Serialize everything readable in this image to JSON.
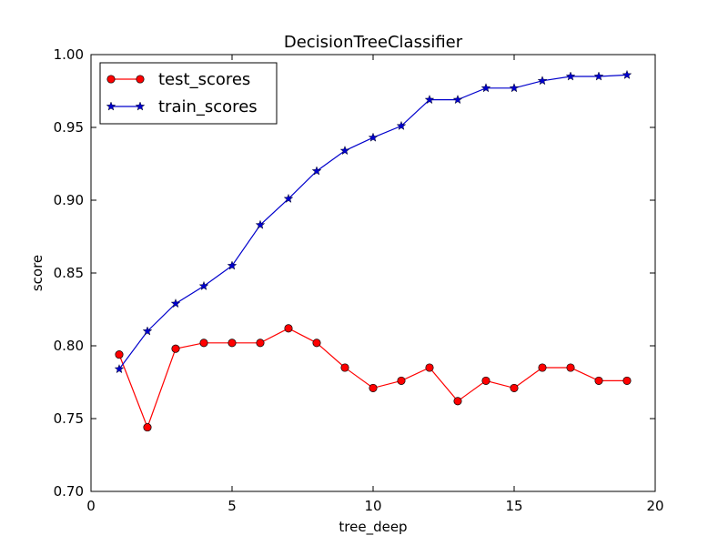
{
  "chart_data": {
    "type": "line",
    "title": "DecisionTreeClassifier",
    "xlabel": "tree_deep",
    "ylabel": "score",
    "xlim": [
      0,
      20
    ],
    "ylim": [
      0.7,
      1.0
    ],
    "xticks": [
      "0",
      "5",
      "10",
      "15",
      "20"
    ],
    "yticks": [
      "0.70",
      "0.75",
      "0.80",
      "0.85",
      "0.90",
      "0.95",
      "1.00"
    ],
    "grid": false,
    "legend_position": "top-left",
    "x": [
      1,
      2,
      3,
      4,
      5,
      6,
      7,
      8,
      9,
      10,
      11,
      12,
      13,
      14,
      15,
      16,
      17,
      18,
      19
    ],
    "series": [
      {
        "name": "test_scores",
        "color": "#ff0000",
        "marker": "circle",
        "values": [
          0.794,
          0.744,
          0.798,
          0.802,
          0.802,
          0.802,
          0.812,
          0.802,
          0.785,
          0.771,
          0.776,
          0.785,
          0.762,
          0.776,
          0.771,
          0.785,
          0.785,
          0.776,
          0.776
        ]
      },
      {
        "name": "train_scores",
        "color": "#0000cc",
        "marker": "star",
        "values": [
          0.784,
          0.81,
          0.829,
          0.841,
          0.855,
          0.883,
          0.901,
          0.92,
          0.934,
          0.943,
          0.951,
          0.969,
          0.969,
          0.977,
          0.977,
          0.982,
          0.985,
          0.985,
          0.986
        ]
      }
    ]
  }
}
